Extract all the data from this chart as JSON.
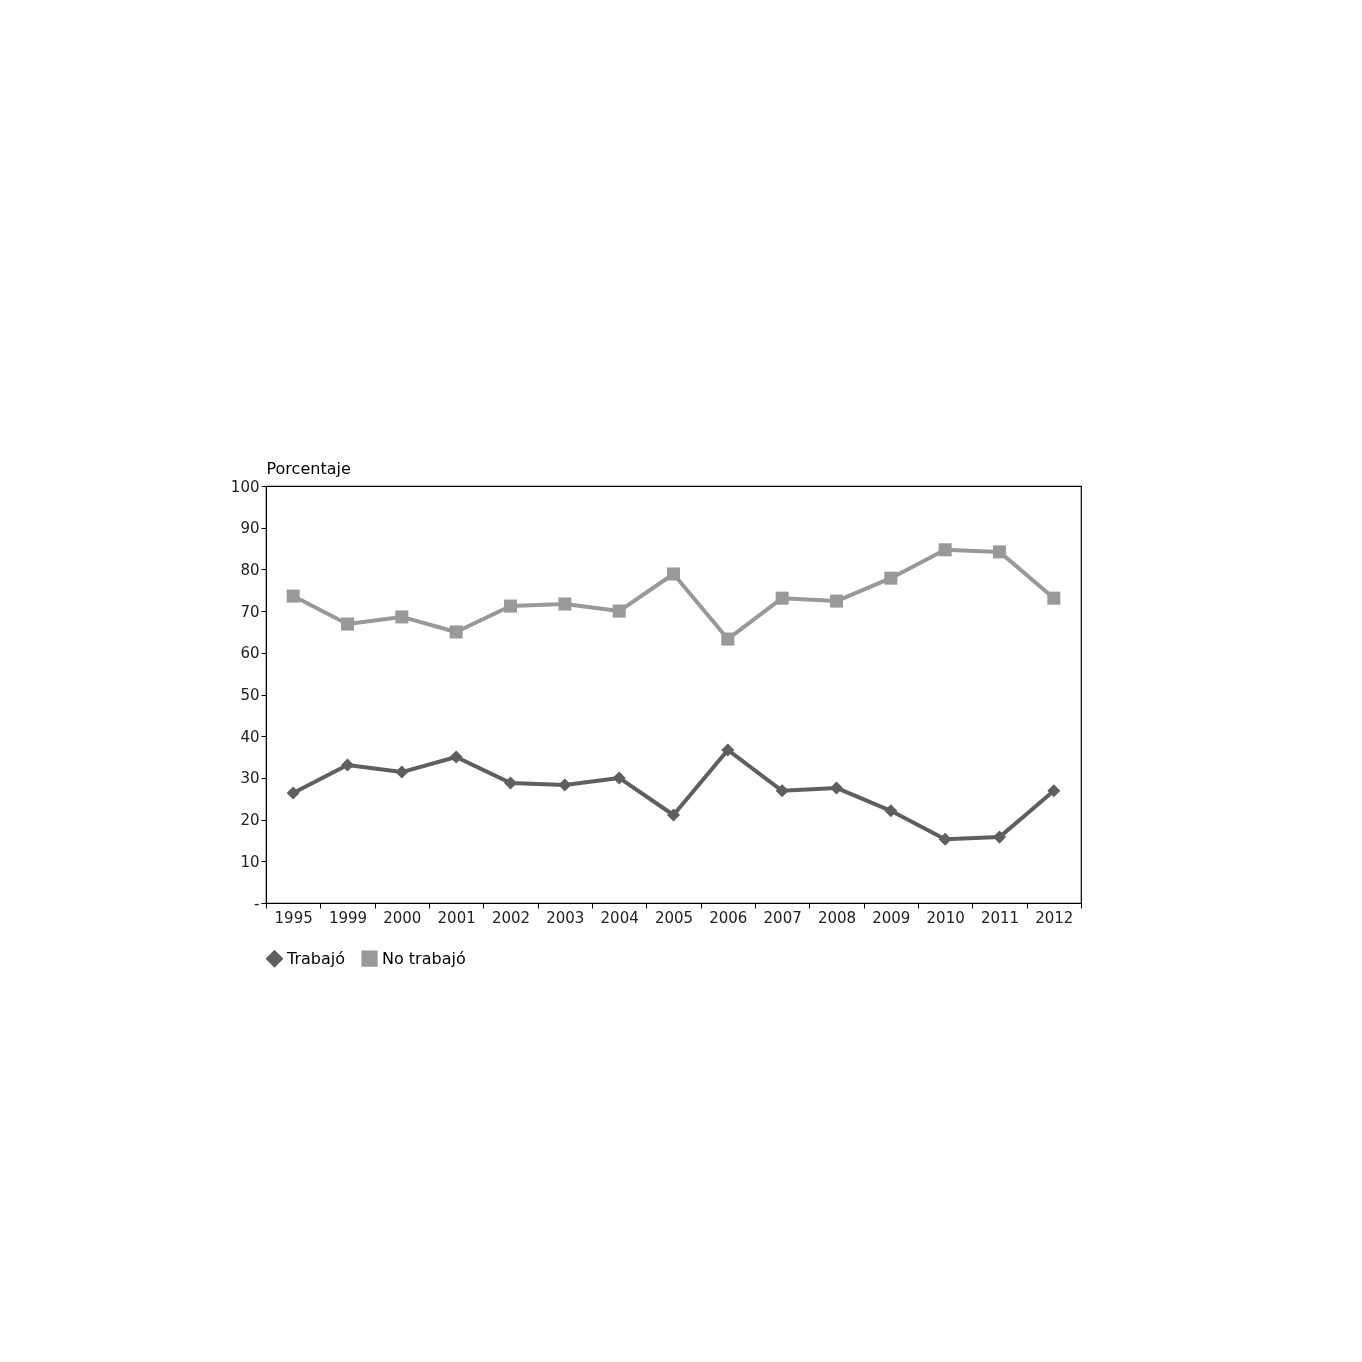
{
  "chart_data": {
    "type": "line",
    "ylabel": "Porcentaje",
    "categories": [
      "1995",
      "1999",
      "2000",
      "2001",
      "2002",
      "2003",
      "2004",
      "2005",
      "2006",
      "2007",
      "2008",
      "2009",
      "2010",
      "2011",
      "2012"
    ],
    "series": [
      {
        "name": "Trabajó",
        "color": "#5f5f5f",
        "marker": "diamond",
        "values": [
          26.4,
          33.1,
          31.4,
          35.0,
          28.8,
          28.3,
          30.0,
          21.1,
          36.7,
          26.9,
          27.6,
          22.1,
          15.3,
          15.8,
          26.9
        ]
      },
      {
        "name": "No trabajó",
        "color": "#999999",
        "marker": "square",
        "values": [
          73.6,
          66.9,
          68.6,
          65.0,
          71.2,
          71.7,
          70.0,
          78.9,
          63.3,
          73.1,
          72.4,
          77.9,
          84.7,
          84.2,
          73.1
        ]
      }
    ],
    "ylim": [
      0,
      100
    ],
    "yticks": [
      {
        "value": 0,
        "label": "-"
      },
      10,
      20,
      30,
      40,
      50,
      60,
      70,
      80,
      90,
      100
    ],
    "grid": false,
    "legend": "bottom",
    "line_style": "solid"
  }
}
